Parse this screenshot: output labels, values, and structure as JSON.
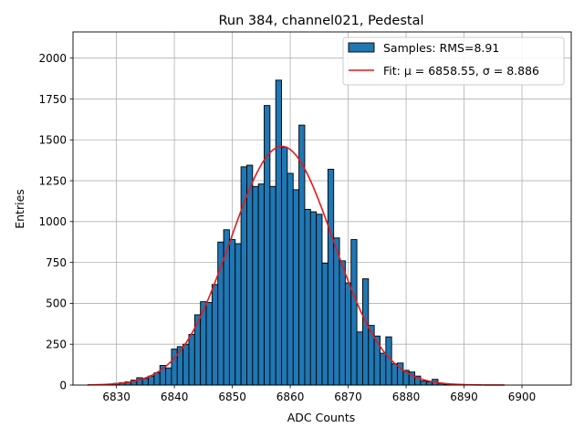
{
  "chart_data": {
    "type": "bar",
    "title": "Run 384, channel021, Pedestal",
    "xlabel": "ADC Counts",
    "ylabel": "Entries",
    "xlim": [
      6822.5,
      6908.5
    ],
    "ylim": [
      0,
      2160
    ],
    "xticks": [
      6830,
      6840,
      6850,
      6860,
      6870,
      6880,
      6890,
      6900
    ],
    "yticks": [
      0,
      250,
      500,
      750,
      1000,
      1250,
      1500,
      1750,
      2000
    ],
    "grid": true,
    "legend_position": "top-right",
    "bin_width": 1,
    "bins": [
      {
        "x": 6829,
        "y": 5
      },
      {
        "x": 6830,
        "y": 10
      },
      {
        "x": 6831,
        "y": 15
      },
      {
        "x": 6832,
        "y": 20
      },
      {
        "x": 6833,
        "y": 30
      },
      {
        "x": 6834,
        "y": 45
      },
      {
        "x": 6835,
        "y": 40
      },
      {
        "x": 6836,
        "y": 55
      },
      {
        "x": 6837,
        "y": 75
      },
      {
        "x": 6838,
        "y": 120
      },
      {
        "x": 6839,
        "y": 105
      },
      {
        "x": 6840,
        "y": 220
      },
      {
        "x": 6841,
        "y": 235
      },
      {
        "x": 6842,
        "y": 250
      },
      {
        "x": 6843,
        "y": 310
      },
      {
        "x": 6844,
        "y": 430
      },
      {
        "x": 6845,
        "y": 510
      },
      {
        "x": 6846,
        "y": 505
      },
      {
        "x": 6847,
        "y": 615
      },
      {
        "x": 6848,
        "y": 875
      },
      {
        "x": 6849,
        "y": 950
      },
      {
        "x": 6850,
        "y": 890
      },
      {
        "x": 6851,
        "y": 865
      },
      {
        "x": 6852,
        "y": 1335
      },
      {
        "x": 6853,
        "y": 1345
      },
      {
        "x": 6854,
        "y": 1215
      },
      {
        "x": 6855,
        "y": 1230
      },
      {
        "x": 6856,
        "y": 1710
      },
      {
        "x": 6857,
        "y": 1215
      },
      {
        "x": 6858,
        "y": 1865
      },
      {
        "x": 6859,
        "y": 1455
      },
      {
        "x": 6860,
        "y": 1295
      },
      {
        "x": 6861,
        "y": 1195
      },
      {
        "x": 6862,
        "y": 1590
      },
      {
        "x": 6863,
        "y": 1075
      },
      {
        "x": 6864,
        "y": 1060
      },
      {
        "x": 6865,
        "y": 1045
      },
      {
        "x": 6866,
        "y": 745
      },
      {
        "x": 6867,
        "y": 1320
      },
      {
        "x": 6868,
        "y": 900
      },
      {
        "x": 6869,
        "y": 760
      },
      {
        "x": 6870,
        "y": 625
      },
      {
        "x": 6871,
        "y": 890
      },
      {
        "x": 6872,
        "y": 325
      },
      {
        "x": 6873,
        "y": 650
      },
      {
        "x": 6874,
        "y": 365
      },
      {
        "x": 6875,
        "y": 300
      },
      {
        "x": 6876,
        "y": 195
      },
      {
        "x": 6877,
        "y": 295
      },
      {
        "x": 6878,
        "y": 130
      },
      {
        "x": 6879,
        "y": 135
      },
      {
        "x": 6880,
        "y": 90
      },
      {
        "x": 6881,
        "y": 80
      },
      {
        "x": 6882,
        "y": 55
      },
      {
        "x": 6883,
        "y": 25
      },
      {
        "x": 6884,
        "y": 20
      },
      {
        "x": 6885,
        "y": 35
      },
      {
        "x": 6886,
        "y": 10
      },
      {
        "x": 6887,
        "y": 5
      }
    ],
    "fit": {
      "mu": 6858.55,
      "sigma": 8.886,
      "amplitude": 1460,
      "x_start": 6825,
      "x_end": 6897,
      "color": "#e31a1c"
    },
    "series": [
      {
        "name": "Samples: RMS=8.91",
        "color": "#1f77b4"
      },
      {
        "name": "Fit: μ = 6858.55, σ = 8.886",
        "color": "#e31a1c"
      }
    ]
  }
}
